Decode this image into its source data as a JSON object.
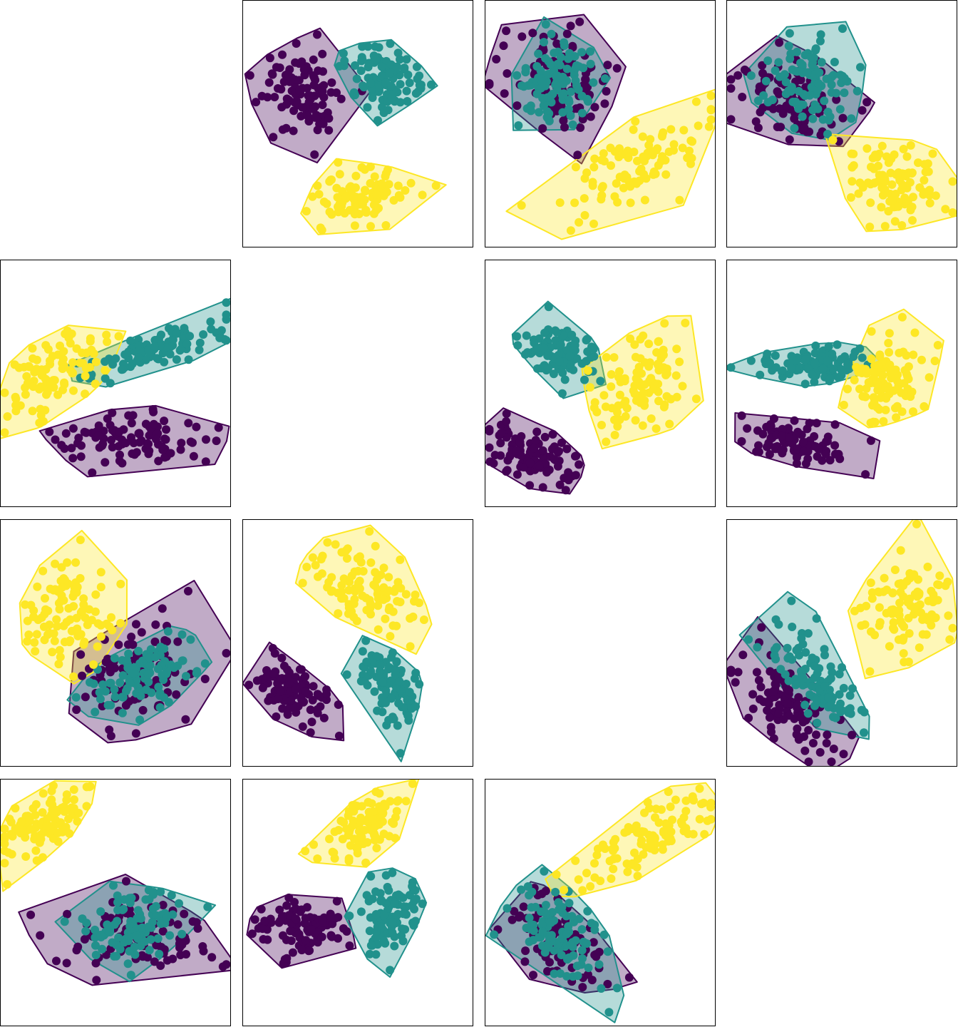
{
  "colors": {
    "class0": "#440154",
    "class1": "#21918c",
    "class2": "#fde725",
    "region_opacity": 0.33
  },
  "chart_data": {
    "type": "scatter",
    "description_kind": "pairwise scatter matrix with per-class convex-ish decision regions",
    "rows": 4,
    "cols": 4,
    "diagonal_empty": true,
    "classes": [
      "class0",
      "class1",
      "class2"
    ],
    "panels": [
      {
        "row": 0,
        "col": 1,
        "centers": [
          [
            0.26,
            0.38
          ],
          [
            0.62,
            0.32
          ],
          [
            0.52,
            0.78
          ]
        ],
        "spread": [
          [
            0.08,
            0.14
          ],
          [
            0.08,
            0.12
          ],
          [
            0.1,
            0.1
          ]
        ],
        "rot": [
          0.3,
          0.6,
          -0.2
        ]
      },
      {
        "row": 0,
        "col": 2,
        "centers": [
          [
            0.32,
            0.33
          ],
          [
            0.32,
            0.34
          ],
          [
            0.65,
            0.68
          ]
        ],
        "spread": [
          [
            0.12,
            0.17
          ],
          [
            0.08,
            0.16
          ],
          [
            0.17,
            0.12
          ]
        ],
        "rot": [
          0.4,
          0.7,
          -0.5
        ]
      },
      {
        "row": 0,
        "col": 3,
        "centers": [
          [
            0.28,
            0.4
          ],
          [
            0.36,
            0.35
          ],
          [
            0.72,
            0.72
          ]
        ],
        "spread": [
          [
            0.12,
            0.15
          ],
          [
            0.1,
            0.14
          ],
          [
            0.1,
            0.14
          ]
        ],
        "rot": [
          0.4,
          0.6,
          0.5
        ]
      },
      {
        "row": 1,
        "col": 0,
        "centers": [
          [
            0.58,
            0.72
          ],
          [
            0.68,
            0.36
          ],
          [
            0.22,
            0.46
          ]
        ],
        "spread": [
          [
            0.16,
            0.1
          ],
          [
            0.15,
            0.06
          ],
          [
            0.14,
            0.1
          ]
        ],
        "rot": [
          0.0,
          -0.3,
          -0.5
        ]
      },
      {
        "row": 1,
        "col": 2,
        "centers": [
          [
            0.2,
            0.78
          ],
          [
            0.33,
            0.38
          ],
          [
            0.68,
            0.5
          ]
        ],
        "spread": [
          [
            0.1,
            0.09
          ],
          [
            0.08,
            0.1
          ],
          [
            0.12,
            0.14
          ]
        ],
        "rot": [
          0.4,
          0.2,
          -0.9
        ]
      },
      {
        "row": 1,
        "col": 3,
        "centers": [
          [
            0.3,
            0.74
          ],
          [
            0.38,
            0.42
          ],
          [
            0.7,
            0.5
          ]
        ],
        "spread": [
          [
            0.1,
            0.09
          ],
          [
            0.12,
            0.06
          ],
          [
            0.1,
            0.12
          ]
        ],
        "rot": [
          0.2,
          0.0,
          -1.0
        ]
      },
      {
        "row": 2,
        "col": 0,
        "centers": [
          [
            0.6,
            0.64
          ],
          [
            0.6,
            0.64
          ],
          [
            0.3,
            0.4
          ]
        ],
        "spread": [
          [
            0.15,
            0.17
          ],
          [
            0.12,
            0.1
          ],
          [
            0.1,
            0.2
          ]
        ],
        "rot": [
          -0.6,
          -0.4,
          0.5
        ]
      },
      {
        "row": 2,
        "col": 1,
        "centers": [
          [
            0.22,
            0.7
          ],
          [
            0.62,
            0.64
          ],
          [
            0.55,
            0.3
          ]
        ],
        "spread": [
          [
            0.08,
            0.1
          ],
          [
            0.1,
            0.1
          ],
          [
            0.12,
            0.16
          ]
        ],
        "rot": [
          0.6,
          0.9,
          0.6
        ]
      },
      {
        "row": 2,
        "col": 3,
        "centers": [
          [
            0.28,
            0.76
          ],
          [
            0.4,
            0.66
          ],
          [
            0.78,
            0.36
          ]
        ],
        "spread": [
          [
            0.12,
            0.12
          ],
          [
            0.13,
            0.12
          ],
          [
            0.1,
            0.18
          ]
        ],
        "rot": [
          0.8,
          0.7,
          0.7
        ]
      },
      {
        "row": 3,
        "col": 0,
        "centers": [
          [
            0.6,
            0.63
          ],
          [
            0.58,
            0.6
          ],
          [
            0.18,
            0.18
          ]
        ],
        "spread": [
          [
            0.15,
            0.14
          ],
          [
            0.12,
            0.13
          ],
          [
            0.12,
            0.1
          ]
        ],
        "rot": [
          0.0,
          -0.4,
          -0.6
        ]
      },
      {
        "row": 3,
        "col": 1,
        "centers": [
          [
            0.28,
            0.6
          ],
          [
            0.65,
            0.55
          ],
          [
            0.53,
            0.2
          ]
        ],
        "spread": [
          [
            0.09,
            0.1
          ],
          [
            0.06,
            0.13
          ],
          [
            0.1,
            0.09
          ]
        ],
        "rot": [
          0.0,
          0.2,
          -0.6
        ]
      },
      {
        "row": 3,
        "col": 2,
        "centers": [
          [
            0.3,
            0.65
          ],
          [
            0.33,
            0.63
          ],
          [
            0.7,
            0.25
          ]
        ],
        "spread": [
          [
            0.12,
            0.13
          ],
          [
            0.12,
            0.13
          ],
          [
            0.18,
            0.1
          ]
        ],
        "rot": [
          0.7,
          0.8,
          -0.6
        ]
      }
    ],
    "points_per_class": 100,
    "seed": 20240601,
    "grid": false,
    "tick_labels": false,
    "legend": false
  }
}
